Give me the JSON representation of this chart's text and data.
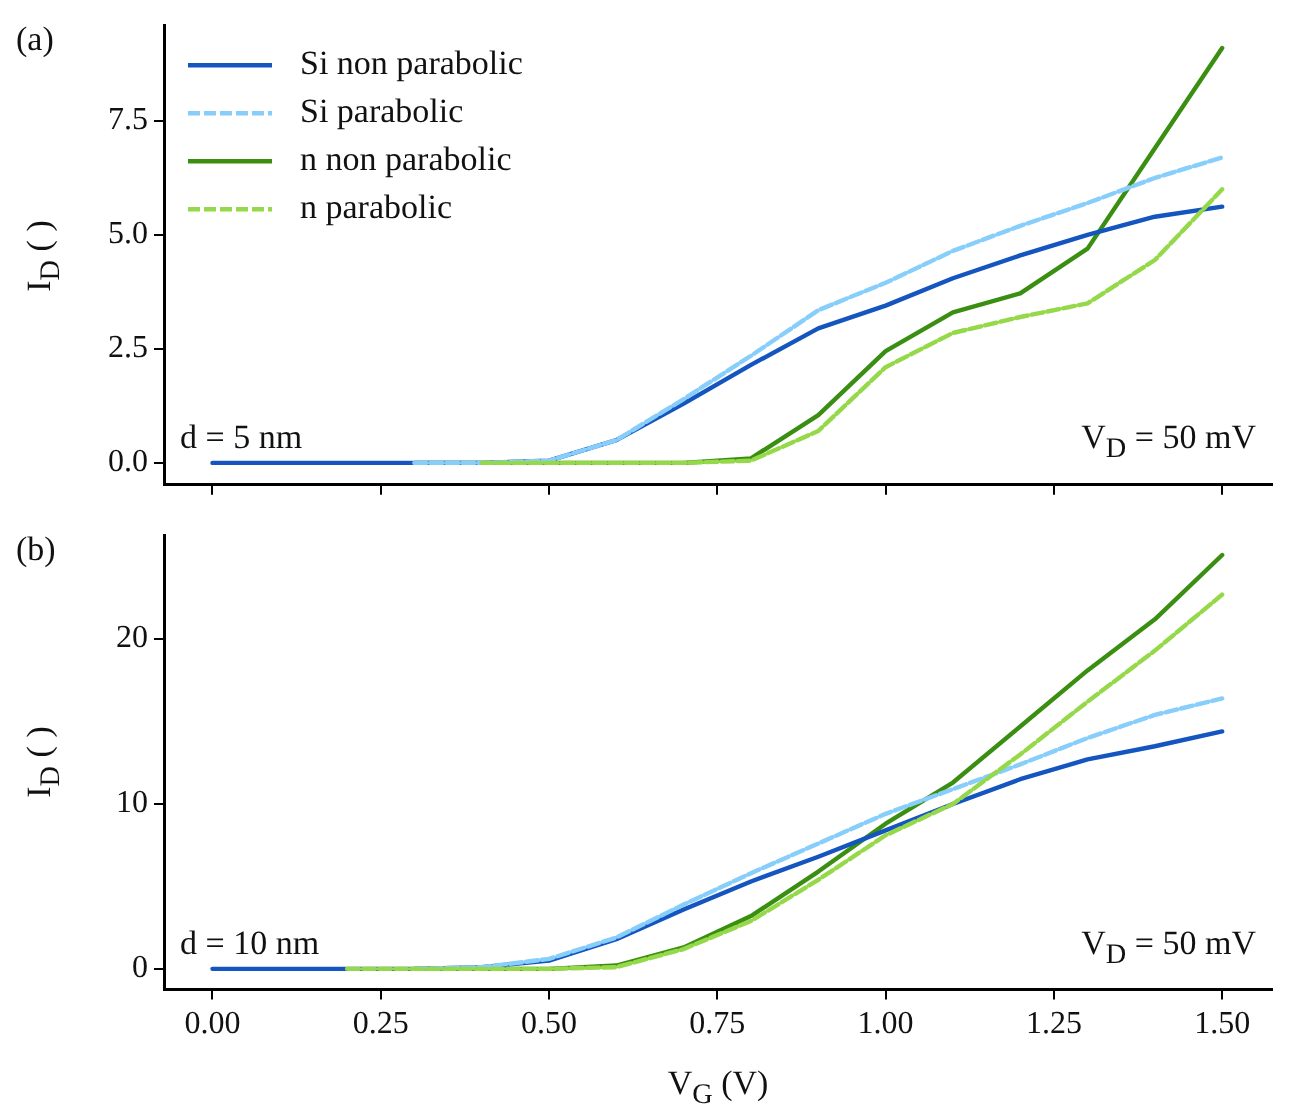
{
  "chart_data": [
    {
      "type": "line",
      "title": "(a)",
      "ylabel": "I$_{D}$ (  )",
      "annotations": [
        "d = 5 nm",
        "V$_{D}$ = 50 mV"
      ],
      "x": [
        0,
        0.1,
        0.2,
        0.3,
        0.4,
        0.5,
        0.6,
        0.7,
        0.8,
        0.9,
        1.0,
        1.1,
        1.2,
        1.3,
        1.4,
        1.5
      ],
      "series": [
        {
          "name": "Si non parabolic",
          "color": "#1455c0",
          "line_style": "solid",
          "values": [
            0,
            0,
            0,
            0,
            0,
            0.05,
            0.5,
            1.3,
            2.15,
            2.95,
            3.45,
            4.05,
            4.55,
            5.0,
            5.4,
            5.62
          ]
        },
        {
          "name": "Si parabolic",
          "color": "#87cefa",
          "line_style": "dashed",
          "values": [
            null,
            null,
            null,
            0,
            0,
            0.05,
            0.5,
            1.4,
            2.35,
            3.35,
            3.95,
            4.65,
            5.2,
            5.7,
            6.25,
            6.7
          ]
        },
        {
          "name": "n non parabolic",
          "color": "#3a8f12",
          "line_style": "solid",
          "values": [
            null,
            null,
            null,
            0,
            0,
            0,
            0,
            0,
            0.1,
            1.05,
            2.45,
            3.3,
            3.72,
            4.7,
            6.9,
            9.1
          ]
        },
        {
          "name": "n parabolic",
          "color": "#95d84a",
          "line_style": "dashed",
          "values": [
            null,
            null,
            null,
            null,
            0,
            0,
            0,
            0,
            0.05,
            0.7,
            2.1,
            2.85,
            3.2,
            3.5,
            4.45,
            6.0
          ]
        }
      ],
      "xlim": [
        -0.072,
        1.574
      ],
      "xticks": [
        {
          "value": 0,
          "label": null
        },
        {
          "value": 0.25,
          "label": null
        },
        {
          "value": 0.5,
          "label": null
        },
        {
          "value": 0.75,
          "label": null
        },
        {
          "value": 1.0,
          "label": null
        },
        {
          "value": 1.25,
          "label": null
        },
        {
          "value": 1.5,
          "label": null
        }
      ],
      "ylim": [
        -0.48,
        9.6
      ],
      "yticks": [
        {
          "value": 0,
          "label": "0.0"
        },
        {
          "value": 2.5,
          "label": "2.5"
        },
        {
          "value": 5,
          "label": "5.0"
        },
        {
          "value": 7.5,
          "label": "7.5"
        }
      ],
      "tick_labels": "y",
      "grid": false,
      "legend": "top left",
      "marker": "none"
    },
    {
      "type": "line",
      "title": "(b)",
      "xlabel": "V$_{G}$ (V)",
      "ylabel": "I$_{D}$ (  )",
      "annotations": [
        "d = 10 nm",
        "V$_{D}$ = 50 mV"
      ],
      "x": [
        0,
        0.1,
        0.2,
        0.3,
        0.4,
        0.5,
        0.6,
        0.7,
        0.8,
        0.9,
        1.0,
        1.1,
        1.2,
        1.3,
        1.4,
        1.5
      ],
      "series": [
        {
          "color": "#1455c0",
          "line_style": "solid",
          "values": [
            0,
            0,
            0,
            0,
            0.1,
            0.5,
            1.8,
            3.6,
            5.3,
            6.8,
            8.4,
            10.0,
            11.5,
            12.7,
            13.5,
            14.4
          ]
        },
        {
          "color": "#87cefa",
          "line_style": "dashed",
          "values": [
            null,
            null,
            null,
            0,
            0.1,
            0.6,
            1.9,
            3.9,
            5.8,
            7.6,
            9.4,
            10.9,
            12.4,
            14.0,
            15.4,
            16.4
          ]
        },
        {
          "color": "#3a8f12",
          "line_style": "solid",
          "values": [
            null,
            null,
            null,
            0,
            0,
            0,
            0.2,
            1.3,
            3.2,
            5.9,
            8.8,
            11.3,
            14.7,
            18.1,
            21.2,
            25.1
          ]
        },
        {
          "color": "#95d84a",
          "line_style": "dashed",
          "values": [
            null,
            null,
            0,
            0,
            0,
            0,
            0.1,
            1.2,
            2.9,
            5.4,
            8.1,
            10.0,
            13.0,
            16.2,
            19.3,
            22.7
          ]
        }
      ],
      "xlim": [
        -0.072,
        1.574
      ],
      "xticks": [
        {
          "value": 0,
          "label": "0.00"
        },
        {
          "value": 0.25,
          "label": "0.25"
        },
        {
          "value": 0.5,
          "label": "0.50"
        },
        {
          "value": 0.75,
          "label": "0.75"
        },
        {
          "value": 1.0,
          "label": "1.00"
        },
        {
          "value": 1.25,
          "label": "1.25"
        },
        {
          "value": 1.5,
          "label": "1.50"
        }
      ],
      "ylim": [
        -1.26,
        26.3
      ],
      "yticks": [
        0,
        10,
        20
      ],
      "grid": false,
      "marker": "none"
    }
  ]
}
